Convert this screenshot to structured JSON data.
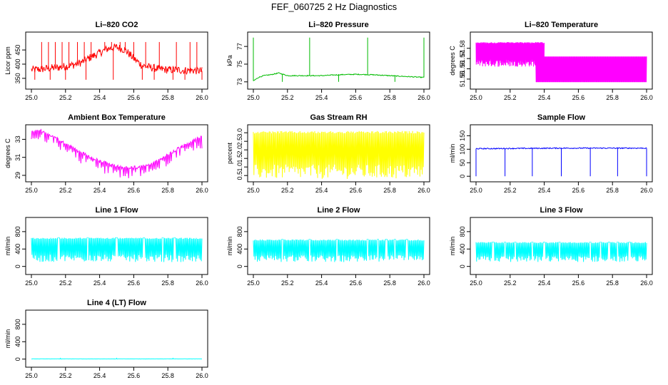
{
  "figure_title": "FEF_060725  2 Hz Diagnostics",
  "chart_data": [
    {
      "id": "co2",
      "type": "line",
      "title": "Li-820 CO2",
      "xlabel": "",
      "ylabel": "Licor ppm",
      "color": "#ff0000",
      "xlim": [
        25.0,
        26.0
      ],
      "ylim": [
        322,
        503
      ],
      "xticks": [
        "25.0",
        "25.2",
        "25.4",
        "25.6",
        "25.8",
        "26.0"
      ],
      "yticks": [
        "350",
        "400",
        "450"
      ],
      "series": {
        "x": [
          25.0,
          25.05,
          25.1,
          25.15,
          25.2,
          25.25,
          25.3,
          25.35,
          25.4,
          25.45,
          25.5,
          25.55,
          25.6,
          25.65,
          25.7,
          25.75,
          25.8,
          25.85,
          25.9,
          25.95,
          26.0
        ],
        "y": [
          380,
          382,
          385,
          388,
          392,
          398,
          408,
          425,
          440,
          455,
          460,
          450,
          420,
          395,
          388,
          383,
          380,
          380,
          378,
          378,
          376
        ],
        "noise": 14,
        "spikes_up": [
          25.06,
          25.1,
          25.14,
          25.18,
          25.22,
          25.27,
          25.31,
          25.35,
          25.43,
          25.47,
          25.52,
          25.55,
          25.6,
          25.67,
          25.75,
          25.85,
          25.93,
          25.97
        ],
        "spike_top": 478,
        "spikes_down": [
          25.02,
          25.11,
          25.2,
          25.32,
          25.48,
          25.65,
          25.72,
          25.83,
          25.9,
          26.0
        ],
        "spike_bottom": 345
      }
    },
    {
      "id": "pressure",
      "type": "line",
      "title": "Li-820 Pressure",
      "xlabel": "",
      "ylabel": "kPa",
      "color": "#00bb00",
      "xlim": [
        25.0,
        26.0
      ],
      "ylim": [
        72.5,
        78.3
      ],
      "xticks": [
        "25.0",
        "25.2",
        "25.4",
        "25.6",
        "25.8",
        "26.0"
      ],
      "yticks": [
        "73",
        "75",
        "77"
      ],
      "series": {
        "x": [
          25.0,
          25.03,
          25.06,
          25.1,
          25.15,
          25.2,
          25.3,
          25.4,
          25.5,
          25.6,
          25.7,
          25.8,
          25.9,
          26.0
        ],
        "y": [
          73.1,
          73.5,
          73.7,
          73.8,
          74.0,
          73.7,
          73.7,
          73.7,
          73.8,
          73.85,
          73.8,
          73.7,
          73.6,
          73.5
        ],
        "noise": 0.05,
        "spikes_up": [
          25.0,
          25.33,
          25.67,
          26.0
        ],
        "spike_top": 78.0,
        "spikes_down": [
          25.17,
          25.5,
          25.83
        ],
        "spike_bottom": 73.0
      }
    },
    {
      "id": "licor_temp",
      "type": "line",
      "title": "Li-820 Temperature",
      "xlabel": "",
      "ylabel": "degrees C",
      "color": "#ff00ff",
      "xlim": [
        25.0,
        26.0
      ],
      "ylim": [
        51.543,
        51.593
      ],
      "xticks": [
        "25.0",
        "25.2",
        "25.4",
        "25.6",
        "25.8",
        "26.0"
      ],
      "yticks": [
        "51.55",
        "51.56",
        "51.57",
        "51.58"
      ],
      "series": {
        "x": [
          25.0,
          26.0
        ],
        "y": [
          51.57,
          51.57
        ],
        "band_low": 51.562,
        "band_high": 51.586,
        "band_end_x": 25.4,
        "band2_low": 51.547,
        "band2_high": 51.572,
        "band2_start_x": 25.35
      }
    },
    {
      "id": "ambient_temp",
      "type": "line",
      "title": "Ambient Box Temperature",
      "xlabel": "",
      "ylabel": "degrees C",
      "color": "#ff00ff",
      "xlim": [
        25.0,
        26.0
      ],
      "ylim": [
        28.6,
        34.3
      ],
      "xticks": [
        "25.0",
        "25.2",
        "25.4",
        "25.6",
        "25.8",
        "26.0"
      ],
      "yticks": [
        "29",
        "31",
        "33"
      ],
      "series": {
        "x": [
          25.0,
          25.05,
          25.1,
          25.15,
          25.2,
          25.25,
          25.3,
          25.35,
          25.4,
          25.45,
          25.5,
          25.55,
          25.6,
          25.65,
          25.7,
          25.75,
          25.8,
          25.85,
          25.9,
          25.95,
          26.0
        ],
        "y": [
          33.8,
          34.0,
          33.6,
          33.1,
          32.5,
          32.0,
          31.5,
          31.0,
          30.6,
          30.3,
          30.0,
          29.9,
          29.9,
          30.0,
          30.3,
          30.7,
          31.3,
          31.9,
          32.4,
          32.9,
          33.3
        ],
        "noise": 0.15,
        "dip": 1.2
      }
    },
    {
      "id": "gas_rh",
      "type": "line",
      "title": "Gas Stream RH",
      "xlabel": "",
      "ylabel": "percent",
      "color": "#ffff00",
      "xlim": [
        25.0,
        26.0
      ],
      "ylim": [
        0.3,
        3.3
      ],
      "xticks": [
        "25.0",
        "25.2",
        "25.4",
        "25.6",
        "25.8",
        "26.0"
      ],
      "yticks": [
        "0.5",
        "1.0",
        "1.5",
        "2.0",
        "2.5",
        "3.0"
      ],
      "series": {
        "x": [
          25.0,
          26.0
        ],
        "y": [
          2.9,
          2.9
        ],
        "band_low": 0.3,
        "band_high": 3.1
      }
    },
    {
      "id": "sample_flow",
      "type": "line",
      "title": "Sample Flow",
      "xlabel": "",
      "ylabel": "ml/min",
      "color": "#0000ff",
      "xlim": [
        25.0,
        26.0
      ],
      "ylim": [
        -10,
        180
      ],
      "xticks": [
        "25.0",
        "25.2",
        "25.4",
        "25.6",
        "25.8",
        "26.0"
      ],
      "yticks": [
        "0",
        "50",
        "100",
        "150"
      ],
      "series": {
        "x": [
          25.0,
          25.5,
          26.0
        ],
        "y": [
          102,
          104,
          104
        ],
        "noise": 2,
        "spikes_down": [
          25.0,
          25.17,
          25.33,
          25.5,
          25.67,
          25.83,
          26.0
        ],
        "spike_bottom": 0,
        "spike_top": 110
      }
    },
    {
      "id": "line1_flow",
      "type": "line",
      "title": "Line 1 Flow",
      "xlabel": "",
      "ylabel": "ml/min",
      "color": "#00ffff",
      "xlim": [
        25.0,
        26.0
      ],
      "ylim": [
        -120,
        1060
      ],
      "xticks": [
        "25.0",
        "25.2",
        "25.4",
        "25.6",
        "25.8",
        "26.0"
      ],
      "yticks": [
        "0",
        "400",
        "800"
      ],
      "series": {
        "x": [
          25.0,
          26.0
        ],
        "y": [
          640,
          640
        ],
        "band_low": 100,
        "band_high": 660,
        "gaps": [
          25.16,
          25.33,
          25.5,
          25.66,
          25.77,
          25.84
        ]
      }
    },
    {
      "id": "line2_flow",
      "type": "line",
      "title": "Line 2 Flow",
      "xlabel": "",
      "ylabel": "ml/min",
      "color": "#00ffff",
      "xlim": [
        25.0,
        26.0
      ],
      "ylim": [
        -120,
        1060
      ],
      "xticks": [
        "25.0",
        "25.2",
        "25.4",
        "25.6",
        "25.8",
        "26.0"
      ],
      "yticks": [
        "0",
        "400",
        "800"
      ],
      "series": {
        "x": [
          25.0,
          26.0
        ],
        "y": [
          600,
          600
        ],
        "band_low": 100,
        "band_high": 620,
        "gaps": [
          25.17,
          25.33,
          25.49,
          25.67,
          25.73,
          25.78,
          25.83,
          25.9
        ]
      }
    },
    {
      "id": "line3_flow",
      "type": "line",
      "title": "Line 3 Flow",
      "xlabel": "",
      "ylabel": "ml/min",
      "color": "#00ffff",
      "xlim": [
        25.0,
        26.0
      ],
      "ylim": [
        -120,
        1060
      ],
      "xticks": [
        "25.0",
        "25.2",
        "25.4",
        "25.6",
        "25.8",
        "26.0"
      ],
      "yticks": [
        "0",
        "400",
        "800"
      ],
      "series": {
        "x": [
          25.0,
          26.0
        ],
        "y": [
          540,
          540
        ],
        "band_low": 100,
        "band_high": 560,
        "gaps": [
          25.1,
          25.17,
          25.23,
          25.33,
          25.4,
          25.49,
          25.67,
          25.73,
          25.78,
          25.83,
          25.9
        ]
      }
    },
    {
      "id": "line4_flow",
      "type": "line",
      "title": "Line 4 (LT) Flow",
      "xlabel": "",
      "ylabel": "ml/min",
      "color": "#00ffff",
      "xlim": [
        25.0,
        26.0
      ],
      "ylim": [
        -120,
        1060
      ],
      "xticks": [
        "25.0",
        "25.2",
        "25.4",
        "25.6",
        "25.8",
        "26.0"
      ],
      "yticks": [
        "0",
        "400",
        "800"
      ],
      "series": {
        "x": [
          25.0,
          26.0
        ],
        "y": [
          5,
          5
        ],
        "noise": 2,
        "spikes_up": [
          25.17,
          25.5,
          25.83
        ],
        "spike_top": 30
      }
    }
  ]
}
